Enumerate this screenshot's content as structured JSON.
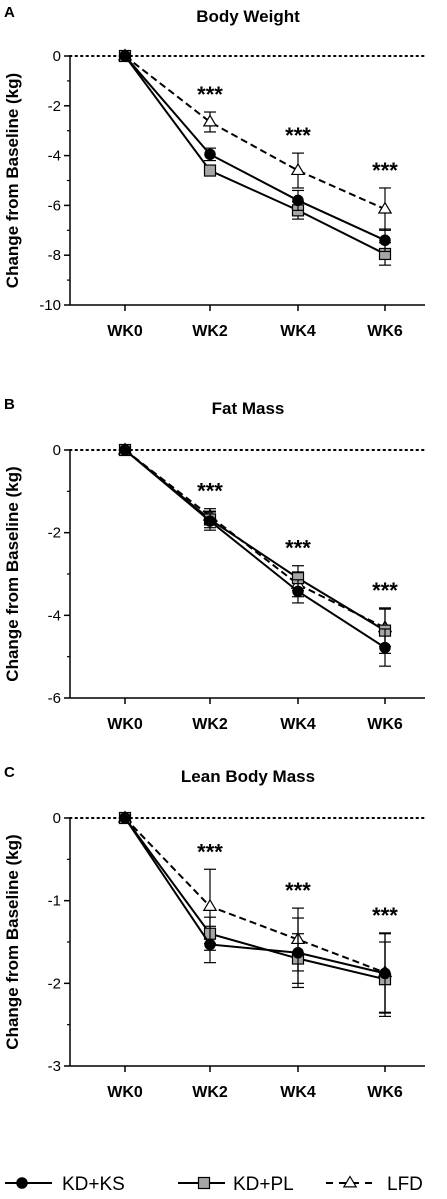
{
  "legend": [
    {
      "series": "KD+KS",
      "marker": "circle",
      "fill": "#000000",
      "dash": "solid"
    },
    {
      "series": "KD+PL",
      "marker": "square",
      "fill": "#a6a6a6",
      "dash": "solid"
    },
    {
      "series": "LFD",
      "marker": "triangle",
      "fill": "#ffffff",
      "dash": "dashed"
    }
  ],
  "chart_data": [
    {
      "panel": "A",
      "type": "line",
      "title": "Body Weight",
      "ylabel": "Change from Baseline (kg)",
      "xlabel": "",
      "categories": [
        "WK0",
        "WK2",
        "WK4",
        "WK6"
      ],
      "ylim": [
        -10,
        0
      ],
      "yticks": [
        0,
        -2,
        -4,
        -6,
        -8,
        -10
      ],
      "ytick_labels": [
        "0",
        "-2",
        "-4",
        "-6",
        "-8",
        "-10"
      ],
      "reference_line": 0,
      "significance": [
        "",
        "***",
        "***",
        "***"
      ],
      "series": [
        {
          "name": "KD+KS",
          "values": [
            0,
            -3.95,
            -5.8,
            -7.4
          ],
          "err": [
            0,
            0.25,
            0.4,
            0.45
          ]
        },
        {
          "name": "KD+PL",
          "values": [
            0,
            -4.6,
            -6.2,
            -7.95
          ],
          "err": [
            0,
            0.2,
            0.35,
            0.45
          ]
        },
        {
          "name": "LFD",
          "values": [
            0,
            -2.65,
            -4.6,
            -6.15
          ],
          "err": [
            0,
            0.4,
            0.7,
            0.85
          ]
        }
      ]
    },
    {
      "panel": "B",
      "type": "line",
      "title": "Fat Mass",
      "ylabel": "Change from Baseline (kg)",
      "xlabel": "",
      "categories": [
        "WK0",
        "WK2",
        "WK4",
        "WK6"
      ],
      "ylim": [
        -6,
        0
      ],
      "yticks": [
        0,
        -2,
        -4,
        -6
      ],
      "ytick_labels": [
        "0",
        "-2",
        "-4",
        "-6"
      ],
      "reference_line": 0,
      "significance": [
        "",
        "***",
        "***",
        "***"
      ],
      "series": [
        {
          "name": "KD+KS",
          "values": [
            0,
            -1.72,
            -3.42,
            -4.78
          ],
          "err": [
            0,
            0.22,
            0.28,
            0.45
          ]
        },
        {
          "name": "KD+PL",
          "values": [
            0,
            -1.68,
            -3.1,
            -4.37
          ],
          "err": [
            0,
            0.2,
            0.3,
            0.55
          ]
        },
        {
          "name": "LFD",
          "values": [
            0,
            -1.6,
            -3.25,
            -4.3
          ],
          "err": [
            0,
            0.18,
            0.3,
            0.45
          ]
        }
      ]
    },
    {
      "panel": "C",
      "type": "line",
      "title": "Lean Body Mass",
      "ylabel": "Change from Baseline (kg)",
      "xlabel": "",
      "categories": [
        "WK0",
        "WK2",
        "WK4",
        "WK6"
      ],
      "ylim": [
        -3,
        0
      ],
      "yticks": [
        0,
        -1,
        -2,
        -3
      ],
      "ytick_labels": [
        "0",
        "-1",
        "-2",
        "-3"
      ],
      "reference_line": 0,
      "significance": [
        "",
        "***",
        "***",
        "***"
      ],
      "series": [
        {
          "name": "KD+KS",
          "values": [
            0,
            -1.53,
            -1.63,
            -1.88
          ],
          "err": [
            0,
            0.22,
            0.42,
            0.48
          ]
        },
        {
          "name": "KD+PL",
          "values": [
            0,
            -1.4,
            -1.7,
            -1.95
          ],
          "err": [
            0,
            0.2,
            0.3,
            0.45
          ]
        },
        {
          "name": "LFD",
          "values": [
            0,
            -1.07,
            -1.47,
            -1.87
          ],
          "err": [
            0,
            0.45,
            0.38,
            0.48
          ]
        }
      ]
    }
  ]
}
